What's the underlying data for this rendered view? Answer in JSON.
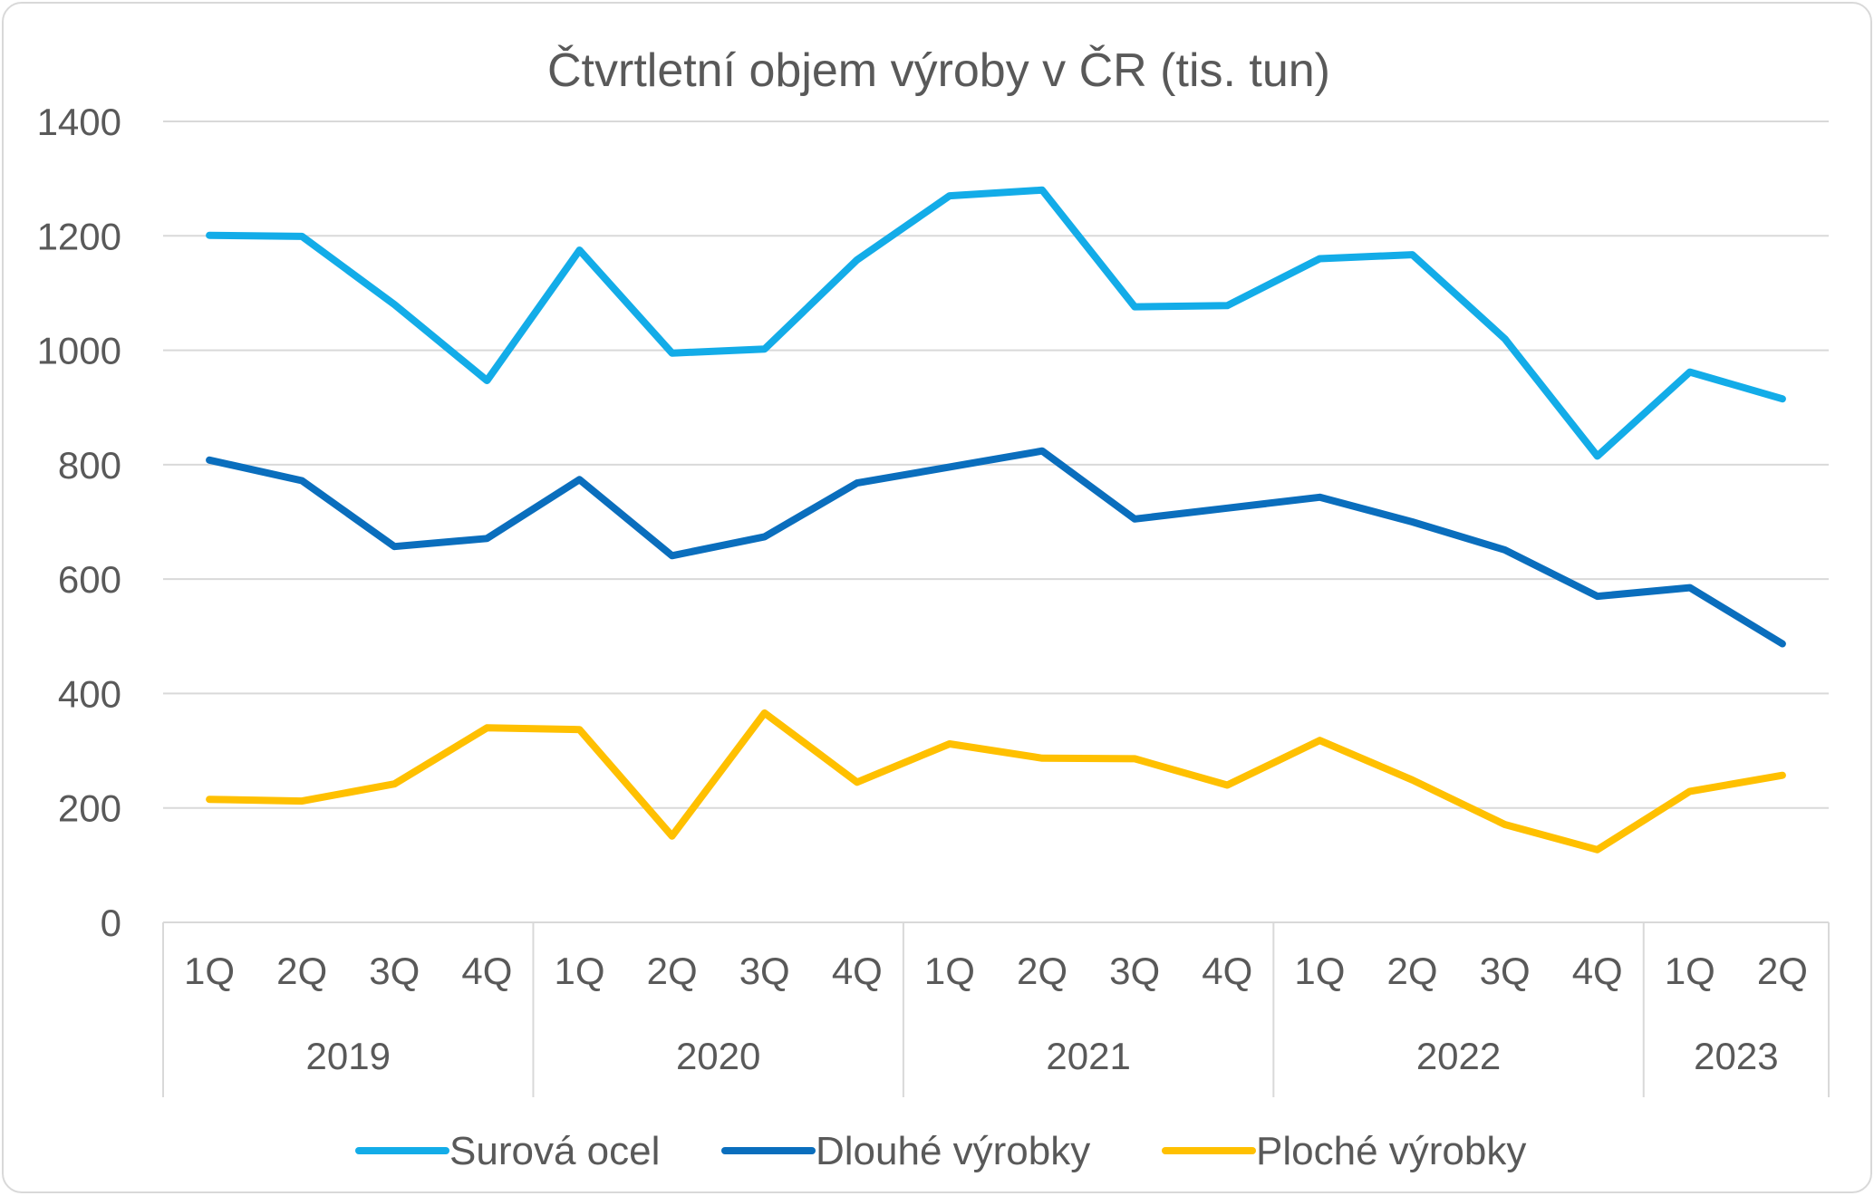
{
  "chart_data": {
    "type": "line",
    "title": "Čtvrtletní objem výroby v ČR (tis. tun)",
    "xlabel": "",
    "ylabel": "",
    "ylim": [
      0,
      1400
    ],
    "y_ticks": [
      0,
      200,
      400,
      600,
      800,
      1000,
      1200,
      1400
    ],
    "grid": true,
    "legend_position": "bottom",
    "categories": [
      "1Q",
      "2Q",
      "3Q",
      "4Q",
      "1Q",
      "2Q",
      "3Q",
      "4Q",
      "1Q",
      "2Q",
      "3Q",
      "4Q",
      "1Q",
      "2Q",
      "3Q",
      "4Q",
      "1Q",
      "2Q"
    ],
    "year_groups": [
      {
        "label": "2019",
        "count": 4
      },
      {
        "label": "2020",
        "count": 4
      },
      {
        "label": "2021",
        "count": 4
      },
      {
        "label": "2022",
        "count": 4
      },
      {
        "label": "2023",
        "count": 2
      }
    ],
    "series": [
      {
        "name": "Surová ocel",
        "color": "#13ace8",
        "values": [
          1201,
          1199,
          1080,
          947,
          1175,
          995,
          1002,
          1158,
          1270,
          1280,
          1076,
          1078,
          1160,
          1167,
          1020,
          815,
          962,
          915
        ]
      },
      {
        "name": "Dlouhé výrobky",
        "color": "#0a6ebd",
        "values": [
          808,
          772,
          657,
          671,
          774,
          641,
          674,
          768,
          796,
          824,
          705,
          724,
          743,
          700,
          651,
          570,
          585,
          487
        ]
      },
      {
        "name": "Ploché výrobky",
        "color": "#ffc000",
        "values": [
          215,
          212,
          242,
          340,
          337,
          151,
          366,
          245,
          312,
          287,
          286,
          240,
          318,
          249,
          171,
          127,
          229,
          257
        ]
      }
    ]
  }
}
